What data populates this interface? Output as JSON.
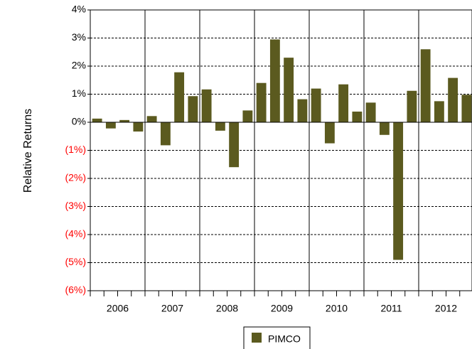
{
  "chart_data": {
    "type": "bar",
    "y_axis_label": "Relative Returns",
    "categories": [
      "2006",
      "2007",
      "2008",
      "2009",
      "2010",
      "2011",
      "2012"
    ],
    "series": [
      {
        "name": "PIMCO",
        "color": "#5b5a1f",
        "values": [
          [
            0.13,
            -0.22,
            0.08,
            -0.33
          ],
          [
            0.22,
            -0.82,
            1.78,
            0.93
          ],
          [
            1.17,
            -0.3,
            -1.6,
            0.42
          ],
          [
            1.4,
            2.95,
            2.3,
            0.82
          ],
          [
            1.2,
            -0.75,
            1.35,
            0.38
          ],
          [
            0.7,
            -0.45,
            -4.9,
            1.12
          ],
          [
            2.6,
            0.75,
            1.58,
            0.98
          ]
        ]
      }
    ],
    "ylim": [
      -6,
      4
    ],
    "yticks": [
      {
        "value": 4,
        "label": "4%"
      },
      {
        "value": 3,
        "label": "3%"
      },
      {
        "value": 2,
        "label": "2%"
      },
      {
        "value": 1,
        "label": "1%"
      },
      {
        "value": 0,
        "label": "0%"
      },
      {
        "value": -1,
        "label": "(1%)"
      },
      {
        "value": -2,
        "label": "(2%)"
      },
      {
        "value": -3,
        "label": "(3%)"
      },
      {
        "value": -4,
        "label": "(4%)"
      },
      {
        "value": -5,
        "label": "(5%)"
      },
      {
        "value": -6,
        "label": "(6%)"
      }
    ],
    "negative_tick_color": "#ff0000",
    "grid": true,
    "legend": "bottom"
  }
}
